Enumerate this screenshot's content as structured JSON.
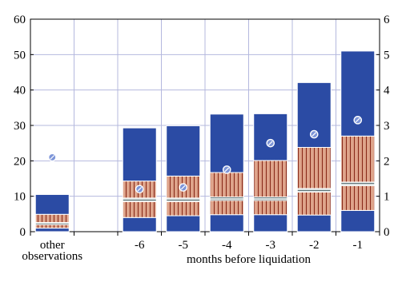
{
  "chart_data": {
    "type": "bar",
    "stacked": true,
    "title": "",
    "xlabel": "months before liquidation",
    "ylabel": "",
    "ylim": [
      0,
      60
    ],
    "y_ticks": [
      0,
      10,
      20,
      30,
      40,
      50,
      60
    ],
    "y_ticks_right": [
      0,
      1,
      2,
      3,
      4,
      5,
      6
    ],
    "grid": true,
    "legend": "none",
    "categories": [
      "other observations",
      "",
      "-6",
      "-5",
      "-4",
      "-3",
      "-2",
      "-1"
    ],
    "series": [
      {
        "values": [
          1,
          null,
          4,
          4.5,
          4.8,
          4.8,
          4.7,
          6
        ],
        "color": "#2b4ba4",
        "pattern": "solid"
      },
      {
        "values": [
          1,
          null,
          4.5,
          4,
          4,
          4,
          6.5,
          7
        ],
        "color": "#dfa58c",
        "pattern": "vertical-stripes"
      },
      {
        "values": [
          0.6,
          null,
          1,
          1,
          1,
          1,
          1,
          1
        ],
        "color": "#d7dfdf",
        "pattern": "horizontal-lines"
      },
      {
        "values": [
          2.3,
          null,
          4.8,
          6.2,
          6.9,
          10.3,
          11.6,
          13
        ],
        "color": "#dfa58c",
        "pattern": "vertical-stripes"
      },
      {
        "values": [
          5.6,
          null,
          15,
          14.2,
          16.5,
          13.2,
          18.3,
          24
        ],
        "color": "#2b4ba4",
        "pattern": "solid"
      }
    ],
    "markers": {
      "axis": "right",
      "values": [
        2.1,
        null,
        1.2,
        1.25,
        1.75,
        2.5,
        2.75,
        3.15
      ],
      "color": "#7d95d8"
    },
    "colors": {
      "bar_dark": "#2b4ba4",
      "bar_light": "#dfa58c",
      "stripe": "#8a2a1a",
      "grid": "#b4b8de",
      "marker": "#7d95d8"
    }
  }
}
